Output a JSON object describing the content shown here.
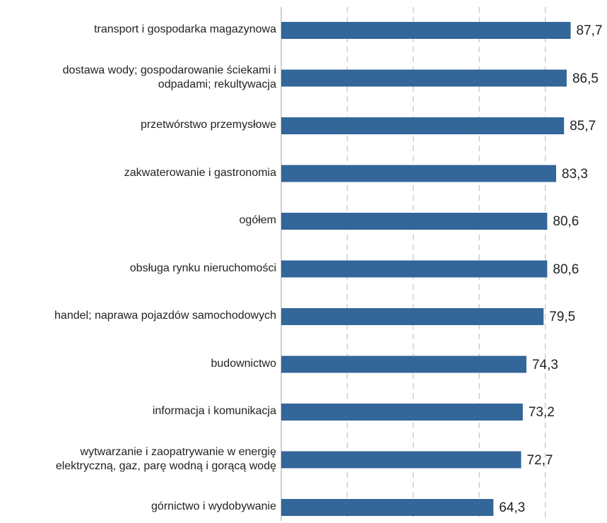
{
  "chart_data": {
    "type": "bar",
    "orientation": "horizontal",
    "categories": [
      "transport i gospodarka magazynowa",
      "dostawa wody; gospodarowanie ściekami i odpadami; rekultywacja",
      "przetwórstwo przemysłowe",
      "zakwaterowanie i gastronomia",
      "ogółem",
      "obsługa rynku nieruchomości",
      "handel; naprawa pojazdów samochodowych",
      "budownictwo",
      "informacja i komunikacja",
      "wytwarzanie i zaopatrywanie w energię elektryczną, gaz, parę wodną i gorącą wodę",
      "górnictwo i wydobywanie"
    ],
    "category_lines": [
      [
        "transport i gospodarka magazynowa"
      ],
      [
        "dostawa wody; gospodarowanie ściekami i",
        "odpadami; rekultywacja"
      ],
      [
        "przetwórstwo przemysłowe"
      ],
      [
        "zakwaterowanie i gastronomia"
      ],
      [
        "ogółem"
      ],
      [
        "obsługa rynku nieruchomości"
      ],
      [
        "handel; naprawa pojazdów samochodowych"
      ],
      [
        "budownictwo"
      ],
      [
        "informacja i komunikacja"
      ],
      [
        "wytwarzanie i zaopatrywanie w energię",
        "elektryczną, gaz, parę wodną i gorącą wodę"
      ],
      [
        "górnictwo i wydobywanie"
      ]
    ],
    "values": [
      87.7,
      86.5,
      85.7,
      83.3,
      80.6,
      80.6,
      79.5,
      74.3,
      73.2,
      72.7,
      64.3
    ],
    "value_labels": [
      "87,7",
      "86,5",
      "85,7",
      "83,3",
      "80,6",
      "80,6",
      "79,5",
      "74,3",
      "73,2",
      "72,7",
      "64,3"
    ],
    "xlim": [
      0,
      100
    ],
    "grid": true,
    "grid_style": "dashed vertical",
    "bar_color": "#336699",
    "grid_color": "#c8c8c8",
    "axis_color": "#c0c0c0"
  }
}
